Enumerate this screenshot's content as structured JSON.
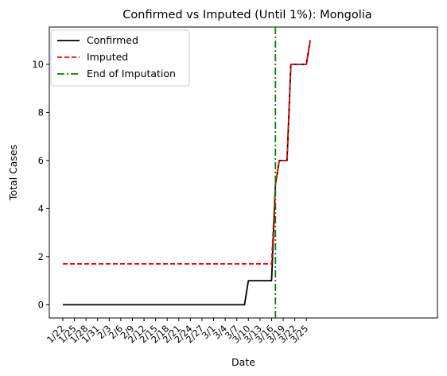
{
  "chart_data": {
    "type": "line",
    "title": "Confirmed vs Imputed (Until 1%): Mongolia",
    "xlabel": "Date",
    "ylabel": "Total Cases",
    "x_tick_labels": [
      "1/22",
      "1/25",
      "1/28",
      "1/31",
      "2/3",
      "2/6",
      "2/9",
      "2/12",
      "2/15",
      "2/18",
      "2/21",
      "2/24",
      "2/27",
      "3/1",
      "3/4",
      "3/7",
      "3/10",
      "3/13",
      "3/16",
      "3/19",
      "3/22",
      "3/25"
    ],
    "y_ticks": [
      0,
      2,
      4,
      6,
      8,
      10
    ],
    "ylim": [
      -0.55,
      11.55
    ],
    "grid": false,
    "legend_position": "top-left",
    "series": [
      {
        "name": "Confirmed",
        "color": "#000000",
        "style": "solid",
        "points": [
          [
            "1/22",
            0
          ],
          [
            "3/9",
            0
          ],
          [
            "3/10",
            1
          ],
          [
            "3/16",
            1
          ],
          [
            "3/17",
            5
          ],
          [
            "3/18",
            6
          ],
          [
            "3/20",
            6
          ],
          [
            "3/21",
            10
          ],
          [
            "3/25",
            10
          ],
          [
            "3/26",
            11
          ]
        ]
      },
      {
        "name": "Imputed",
        "color": "#ff0000",
        "style": "dashed",
        "points": [
          [
            "1/22",
            1.7
          ],
          [
            "3/16",
            1.7
          ],
          [
            "3/17",
            5
          ],
          [
            "3/18",
            6
          ],
          [
            "3/20",
            6
          ],
          [
            "3/21",
            10
          ],
          [
            "3/25",
            10
          ],
          [
            "3/26",
            11
          ]
        ]
      }
    ],
    "vertical_lines": [
      {
        "name": "End of Imputation",
        "x": "3/17",
        "color": "#008000",
        "style": "dashdot"
      }
    ]
  }
}
